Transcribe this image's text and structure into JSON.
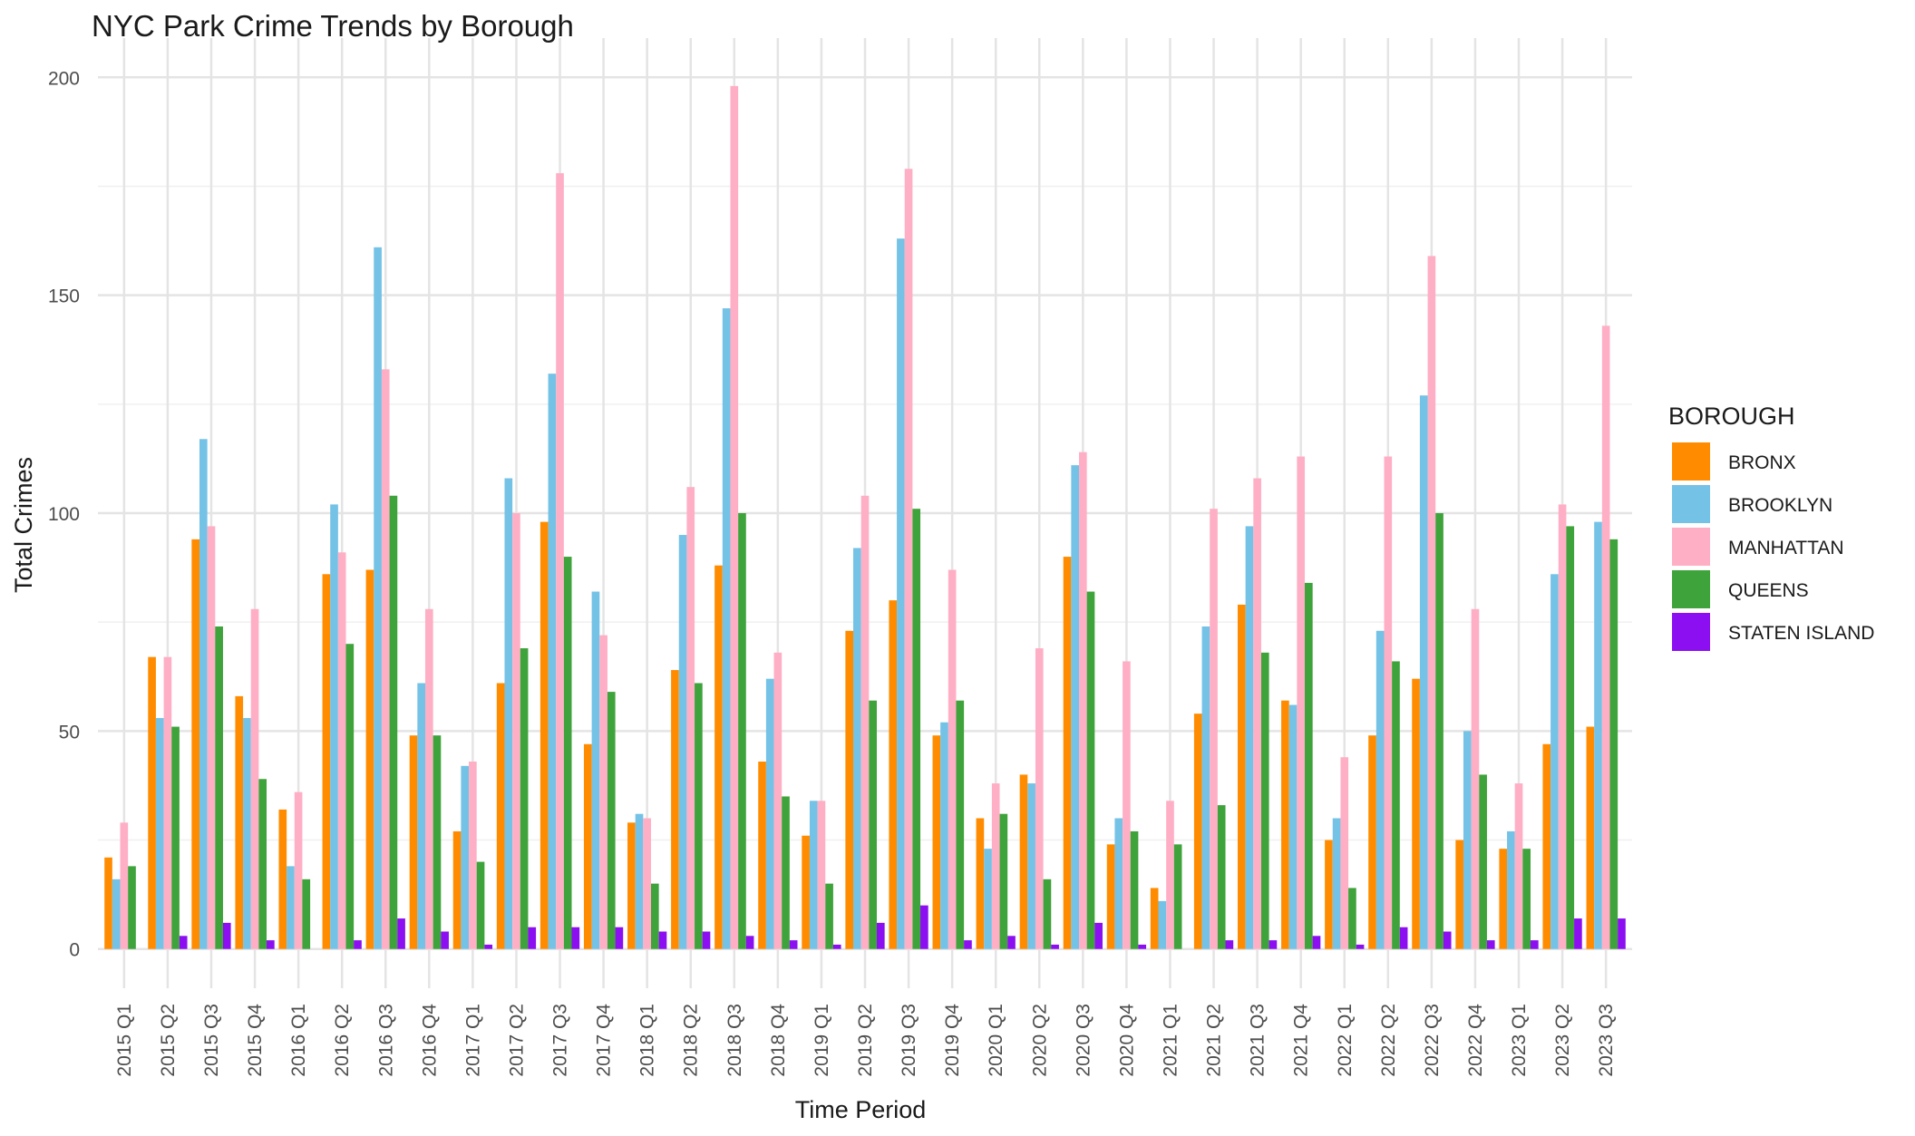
{
  "chart_data": {
    "type": "bar",
    "title": "NYC Park Crime Trends by Borough",
    "xlabel": "Time Period",
    "ylabel": "Total Crimes",
    "ylim": [
      -9,
      209
    ],
    "yticks": [
      0,
      50,
      100,
      150,
      200
    ],
    "grid": true,
    "legend": {
      "title": "BOROUGH",
      "position": "right"
    },
    "categories": [
      "2015 Q1",
      "2015 Q2",
      "2015 Q3",
      "2015 Q4",
      "2016 Q1",
      "2016 Q2",
      "2016 Q3",
      "2016 Q4",
      "2017 Q1",
      "2017 Q2",
      "2017 Q3",
      "2017 Q4",
      "2018 Q1",
      "2018 Q2",
      "2018 Q3",
      "2018 Q4",
      "2019 Q1",
      "2019 Q2",
      "2019 Q3",
      "2019 Q4",
      "2020 Q1",
      "2020 Q2",
      "2020 Q3",
      "2020 Q4",
      "2021 Q1",
      "2021 Q2",
      "2021 Q3",
      "2021 Q4",
      "2022 Q1",
      "2022 Q2",
      "2022 Q3",
      "2022 Q4",
      "2023 Q1",
      "2023 Q2",
      "2023 Q3"
    ],
    "series": [
      {
        "name": "BRONX",
        "color": "#FF8C00",
        "values": [
          21,
          67,
          94,
          58,
          32,
          86,
          87,
          49,
          27,
          61,
          98,
          47,
          29,
          64,
          88,
          43,
          26,
          73,
          80,
          49,
          30,
          40,
          90,
          24,
          14,
          54,
          79,
          57,
          25,
          49,
          62,
          25,
          23,
          47,
          51
        ]
      },
      {
        "name": "BROOKLYN",
        "color": "#74C2E6",
        "values": [
          16,
          53,
          117,
          53,
          19,
          102,
          161,
          61,
          42,
          108,
          132,
          82,
          31,
          95,
          147,
          62,
          34,
          92,
          163,
          52,
          23,
          38,
          111,
          30,
          11,
          74,
          97,
          56,
          30,
          73,
          127,
          50,
          27,
          86,
          98
        ]
      },
      {
        "name": "MANHATTAN",
        "color": "#FFAFC5",
        "values": [
          29,
          67,
          97,
          78,
          36,
          91,
          133,
          78,
          43,
          100,
          178,
          72,
          30,
          106,
          198,
          68,
          34,
          104,
          179,
          87,
          38,
          69,
          114,
          66,
          34,
          101,
          108,
          113,
          44,
          113,
          159,
          78,
          38,
          102,
          143
        ]
      },
      {
        "name": "QUEENS",
        "color": "#3EA33A",
        "values": [
          19,
          51,
          74,
          39,
          16,
          70,
          104,
          49,
          20,
          69,
          90,
          59,
          15,
          61,
          100,
          35,
          15,
          57,
          101,
          57,
          31,
          16,
          82,
          27,
          24,
          33,
          68,
          84,
          14,
          66,
          100,
          40,
          23,
          97,
          94
        ]
      },
      {
        "name": "STATEN ISLAND",
        "color": "#8B0FF0",
        "values": [
          0,
          3,
          6,
          2,
          0,
          2,
          7,
          4,
          1,
          5,
          5,
          5,
          4,
          4,
          3,
          2,
          1,
          6,
          10,
          2,
          3,
          1,
          6,
          1,
          0,
          2,
          2,
          3,
          1,
          5,
          4,
          2,
          2,
          7,
          7
        ]
      }
    ]
  }
}
